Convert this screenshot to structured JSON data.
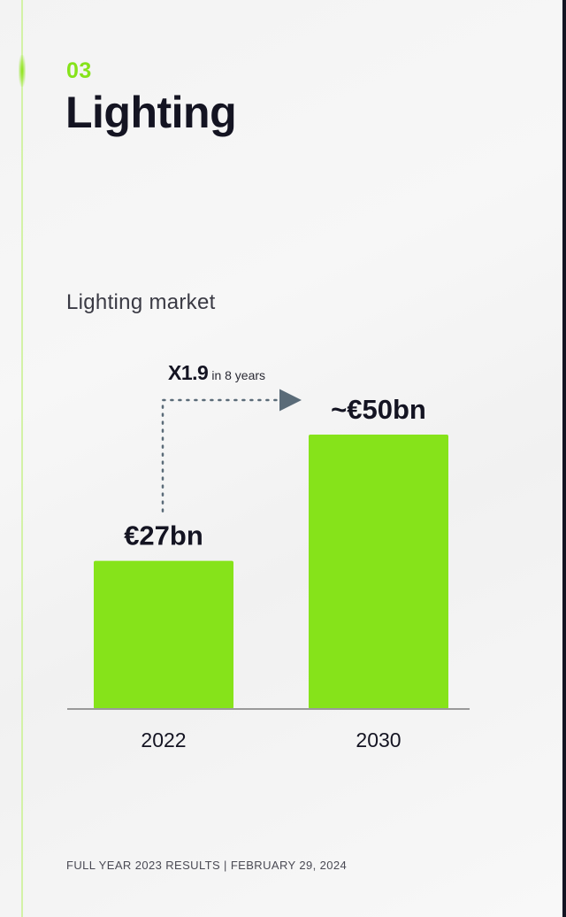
{
  "section": {
    "number": "03",
    "title": "Lighting"
  },
  "chart_data": {
    "type": "bar",
    "title": "Lighting market",
    "categories": [
      "2022",
      "2030"
    ],
    "values": [
      27,
      50
    ],
    "data_labels": [
      "€27bn",
      "~€50bn"
    ],
    "unit": "€bn",
    "ylim": [
      0,
      60
    ],
    "xlabel": "",
    "ylabel": "",
    "grid": false,
    "legend": "none",
    "bar_color": "#86e31a",
    "annotation": {
      "factor": "X1.9",
      "period": "in 8 years"
    }
  },
  "colors": {
    "accent": "#86e31a",
    "text": "#141422",
    "arrow": "#5a6b78",
    "axis": "#9a9a9a"
  },
  "footer": {
    "text": "FULL YEAR 2023 RESULTS | FEBRUARY 29, 2024"
  }
}
